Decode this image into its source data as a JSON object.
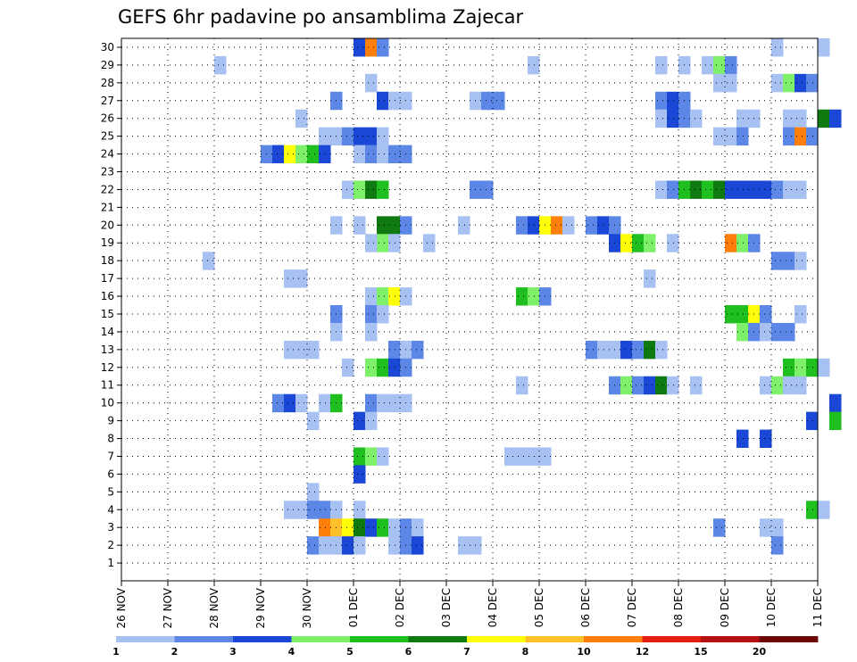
{
  "chart_data": {
    "type": "heatmap",
    "title": "GEFS 6hr padavine po ansamblima Zajecar",
    "y_categories": [
      "1",
      "2",
      "3",
      "4",
      "5",
      "6",
      "7",
      "8",
      "9",
      "10",
      "11",
      "12",
      "13",
      "14",
      "15",
      "16",
      "17",
      "18",
      "19",
      "20",
      "21",
      "22",
      "23",
      "24",
      "25",
      "26",
      "27",
      "28",
      "29",
      "30"
    ],
    "x_tick_labels": [
      "26 NOV",
      "27 NOV",
      "28 NOV",
      "29 NOV",
      "30 NOV",
      "01 DEC",
      "02 DEC",
      "03 DEC",
      "04 DEC",
      "05 DEC",
      "06 DEC",
      "07 DEC",
      "08 DEC",
      "09 DEC",
      "10 DEC",
      "11 DEC"
    ],
    "x_unit": "6hr steps from 26 NOV",
    "x_range": [
      0,
      60
    ],
    "grid": true,
    "colorbar": {
      "labels": [
        "1",
        "2",
        "3",
        "4",
        "5",
        "6",
        "7",
        "8",
        "10",
        "12",
        "15",
        "20"
      ],
      "colors": [
        "#a6c1f2",
        "#5c87e6",
        "#1a47d6",
        "#7ff06a",
        "#1fbf1f",
        "#0f7a0f",
        "#ffff0a",
        "#ffc02a",
        "#ff7f0a",
        "#e62010",
        "#b41010",
        "#6e0808"
      ]
    },
    "cells": [
      {
        "member": 30,
        "t": [
          [
            20,
            1,
            3
          ],
          [
            21,
            1,
            9
          ],
          [
            22,
            1,
            2
          ],
          [
            56,
            1,
            1
          ],
          [
            60,
            1,
            1
          ]
        ]
      },
      {
        "member": 29,
        "t": [
          [
            8,
            1,
            1
          ],
          [
            35,
            1,
            1
          ],
          [
            46,
            1,
            1
          ],
          [
            48,
            1,
            1
          ],
          [
            50,
            1,
            1
          ],
          [
            51,
            1,
            4
          ],
          [
            52,
            1,
            2
          ]
        ]
      },
      {
        "member": 28,
        "t": [
          [
            21,
            1,
            1
          ],
          [
            51,
            2,
            1
          ],
          [
            56,
            1,
            1
          ],
          [
            57,
            1,
            4
          ],
          [
            58,
            1,
            3
          ],
          [
            59,
            1,
            2
          ]
        ]
      },
      {
        "member": 27,
        "t": [
          [
            18,
            1,
            2
          ],
          [
            22,
            1,
            3
          ],
          [
            23,
            2,
            1
          ],
          [
            30,
            1,
            1
          ],
          [
            31,
            2,
            2
          ],
          [
            46,
            1,
            2
          ],
          [
            47,
            1,
            3
          ],
          [
            48,
            1,
            2
          ]
        ]
      },
      {
        "member": 26,
        "t": [
          [
            15,
            1,
            1
          ],
          [
            46,
            1,
            1
          ],
          [
            47,
            1,
            3
          ],
          [
            48,
            1,
            2
          ],
          [
            49,
            1,
            1
          ],
          [
            53,
            2,
            1
          ],
          [
            57,
            2,
            1
          ],
          [
            60,
            1,
            6
          ],
          [
            61,
            1,
            3
          ]
        ]
      },
      {
        "member": 25,
        "t": [
          [
            17,
            2,
            1
          ],
          [
            19,
            1,
            2
          ],
          [
            20,
            2,
            3
          ],
          [
            22,
            1,
            1
          ],
          [
            51,
            2,
            1
          ],
          [
            53,
            1,
            2
          ],
          [
            57,
            1,
            2
          ],
          [
            58,
            1,
            9
          ],
          [
            59,
            1,
            2
          ]
        ]
      },
      {
        "member": 24,
        "t": [
          [
            12,
            1,
            2
          ],
          [
            13,
            1,
            3
          ],
          [
            14,
            1,
            7
          ],
          [
            15,
            1,
            4
          ],
          [
            16,
            1,
            5
          ],
          [
            17,
            1,
            3
          ],
          [
            20,
            1,
            1
          ],
          [
            21,
            1,
            2
          ],
          [
            22,
            1,
            1
          ],
          [
            23,
            2,
            2
          ]
        ]
      },
      {
        "member": 22,
        "t": [
          [
            19,
            1,
            1
          ],
          [
            20,
            1,
            4
          ],
          [
            21,
            1,
            6
          ],
          [
            22,
            1,
            5
          ],
          [
            30,
            2,
            2
          ],
          [
            46,
            1,
            1
          ],
          [
            47,
            1,
            2
          ],
          [
            48,
            1,
            5
          ],
          [
            49,
            1,
            6
          ],
          [
            50,
            1,
            5
          ],
          [
            51,
            1,
            6
          ],
          [
            52,
            4,
            3
          ],
          [
            56,
            1,
            2
          ],
          [
            57,
            2,
            1
          ]
        ]
      },
      {
        "member": 20,
        "t": [
          [
            18,
            1,
            1
          ],
          [
            20,
            1,
            1
          ],
          [
            22,
            2,
            6
          ],
          [
            24,
            1,
            2
          ],
          [
            29,
            1,
            1
          ],
          [
            34,
            1,
            2
          ],
          [
            35,
            1,
            3
          ],
          [
            36,
            1,
            7
          ],
          [
            37,
            1,
            9
          ],
          [
            38,
            1,
            1
          ],
          [
            40,
            1,
            2
          ],
          [
            41,
            1,
            3
          ],
          [
            42,
            1,
            2
          ]
        ]
      },
      {
        "member": 19,
        "t": [
          [
            22,
            1,
            4
          ]
        ]
      },
      {
        "member": 19,
        "t": [
          [
            21,
            1,
            1
          ],
          [
            23,
            1,
            1
          ],
          [
            26,
            1,
            1
          ],
          [
            42,
            1,
            3
          ],
          [
            43,
            1,
            7
          ],
          [
            44,
            1,
            5
          ],
          [
            45,
            1,
            4
          ],
          [
            47,
            1,
            1
          ],
          [
            52,
            1,
            9
          ],
          [
            53,
            1,
            4
          ],
          [
            54,
            1,
            2
          ]
        ]
      },
      {
        "member": 18,
        "t": [
          [
            7,
            1,
            1
          ],
          [
            56,
            2,
            2
          ],
          [
            58,
            1,
            1
          ]
        ]
      },
      {
        "member": 17,
        "t": [
          [
            14,
            2,
            1
          ],
          [
            45,
            1,
            1
          ]
        ]
      },
      {
        "member": 16,
        "t": [
          [
            21,
            1,
            1
          ],
          [
            22,
            1,
            4
          ],
          [
            23,
            1,
            7
          ],
          [
            24,
            1,
            1
          ],
          [
            34,
            1,
            5
          ],
          [
            35,
            1,
            4
          ],
          [
            36,
            1,
            2
          ]
        ]
      },
      {
        "member": 15,
        "t": [
          [
            18,
            1,
            2
          ],
          [
            21,
            1,
            2
          ],
          [
            22,
            1,
            1
          ],
          [
            52,
            2,
            5
          ],
          [
            54,
            1,
            7
          ],
          [
            55,
            1,
            2
          ],
          [
            58,
            1,
            1
          ]
        ]
      },
      {
        "member": 14,
        "t": [
          [
            18,
            1,
            1
          ],
          [
            21,
            1,
            1
          ],
          [
            53,
            1,
            4
          ],
          [
            54,
            1,
            2
          ],
          [
            55,
            1,
            1
          ],
          [
            56,
            2,
            2
          ]
        ]
      },
      {
        "member": 13,
        "t": [
          [
            14,
            3,
            1
          ],
          [
            23,
            1,
            2
          ],
          [
            24,
            1,
            1
          ],
          [
            25,
            1,
            2
          ],
          [
            40,
            1,
            2
          ],
          [
            41,
            2,
            1
          ],
          [
            43,
            1,
            3
          ],
          [
            44,
            1,
            2
          ],
          [
            45,
            1,
            6
          ],
          [
            46,
            1,
            1
          ]
        ]
      },
      {
        "member": 12,
        "t": [
          [
            19,
            1,
            1
          ],
          [
            21,
            1,
            4
          ],
          [
            22,
            1,
            5
          ],
          [
            23,
            1,
            3
          ],
          [
            24,
            1,
            2
          ],
          [
            57,
            1,
            5
          ],
          [
            58,
            1,
            4
          ],
          [
            59,
            1,
            5
          ],
          [
            60,
            1,
            1
          ]
        ]
      },
      {
        "member": 11,
        "t": [
          [
            34,
            1,
            1
          ],
          [
            42,
            1,
            2
          ],
          [
            43,
            1,
            4
          ],
          [
            44,
            1,
            2
          ],
          [
            45,
            1,
            3
          ],
          [
            46,
            1,
            6
          ],
          [
            47,
            1,
            1
          ],
          [
            49,
            1,
            1
          ],
          [
            55,
            1,
            1
          ],
          [
            56,
            1,
            4
          ],
          [
            57,
            2,
            1
          ]
        ]
      },
      {
        "member": 10,
        "t": [
          [
            13,
            1,
            2
          ],
          [
            14,
            1,
            3
          ],
          [
            15,
            1,
            1
          ],
          [
            17,
            1,
            1
          ],
          [
            18,
            1,
            5
          ],
          [
            21,
            1,
            2
          ],
          [
            22,
            3,
            1
          ],
          [
            61,
            1,
            3
          ]
        ]
      },
      {
        "member": 9,
        "t": [
          [
            16,
            1,
            1
          ],
          [
            20,
            1,
            3
          ],
          [
            21,
            1,
            1
          ],
          [
            59,
            1,
            3
          ],
          [
            61,
            1,
            5
          ]
        ]
      },
      {
        "member": 8,
        "t": [
          [
            53,
            1,
            3
          ],
          [
            55,
            1,
            3
          ]
        ]
      },
      {
        "member": 7,
        "t": [
          [
            20,
            1,
            5
          ],
          [
            21,
            1,
            4
          ],
          [
            22,
            1,
            1
          ],
          [
            33,
            4,
            1
          ]
        ]
      },
      {
        "member": 6,
        "t": [
          [
            20,
            1,
            3
          ]
        ]
      },
      {
        "member": 5,
        "t": [
          [
            16,
            1,
            1
          ]
        ]
      },
      {
        "member": 4,
        "t": [
          [
            14,
            1,
            1
          ],
          [
            15,
            1,
            1
          ],
          [
            16,
            1,
            2
          ],
          [
            17,
            1,
            2
          ],
          [
            18,
            1,
            1
          ],
          [
            20,
            1,
            1
          ],
          [
            59,
            1,
            5
          ],
          [
            60,
            1,
            1
          ]
        ]
      },
      {
        "member": 3,
        "t": [
          [
            17,
            1,
            9
          ],
          [
            18,
            1,
            8
          ],
          [
            19,
            1,
            7
          ],
          [
            20,
            1,
            6
          ],
          [
            21,
            1,
            3
          ],
          [
            22,
            1,
            5
          ],
          [
            23,
            1,
            1
          ],
          [
            24,
            1,
            2
          ],
          [
            25,
            1,
            1
          ],
          [
            51,
            1,
            2
          ],
          [
            55,
            2,
            1
          ]
        ]
      },
      {
        "member": 2,
        "t": [
          [
            16,
            1,
            2
          ],
          [
            17,
            1,
            1
          ],
          [
            18,
            1,
            1
          ],
          [
            19,
            1,
            3
          ],
          [
            20,
            1,
            1
          ],
          [
            23,
            1,
            1
          ],
          [
            24,
            1,
            2
          ],
          [
            25,
            1,
            3
          ],
          [
            29,
            2,
            1
          ],
          [
            56,
            1,
            2
          ]
        ]
      },
      {
        "member": 1,
        "t": []
      }
    ]
  }
}
